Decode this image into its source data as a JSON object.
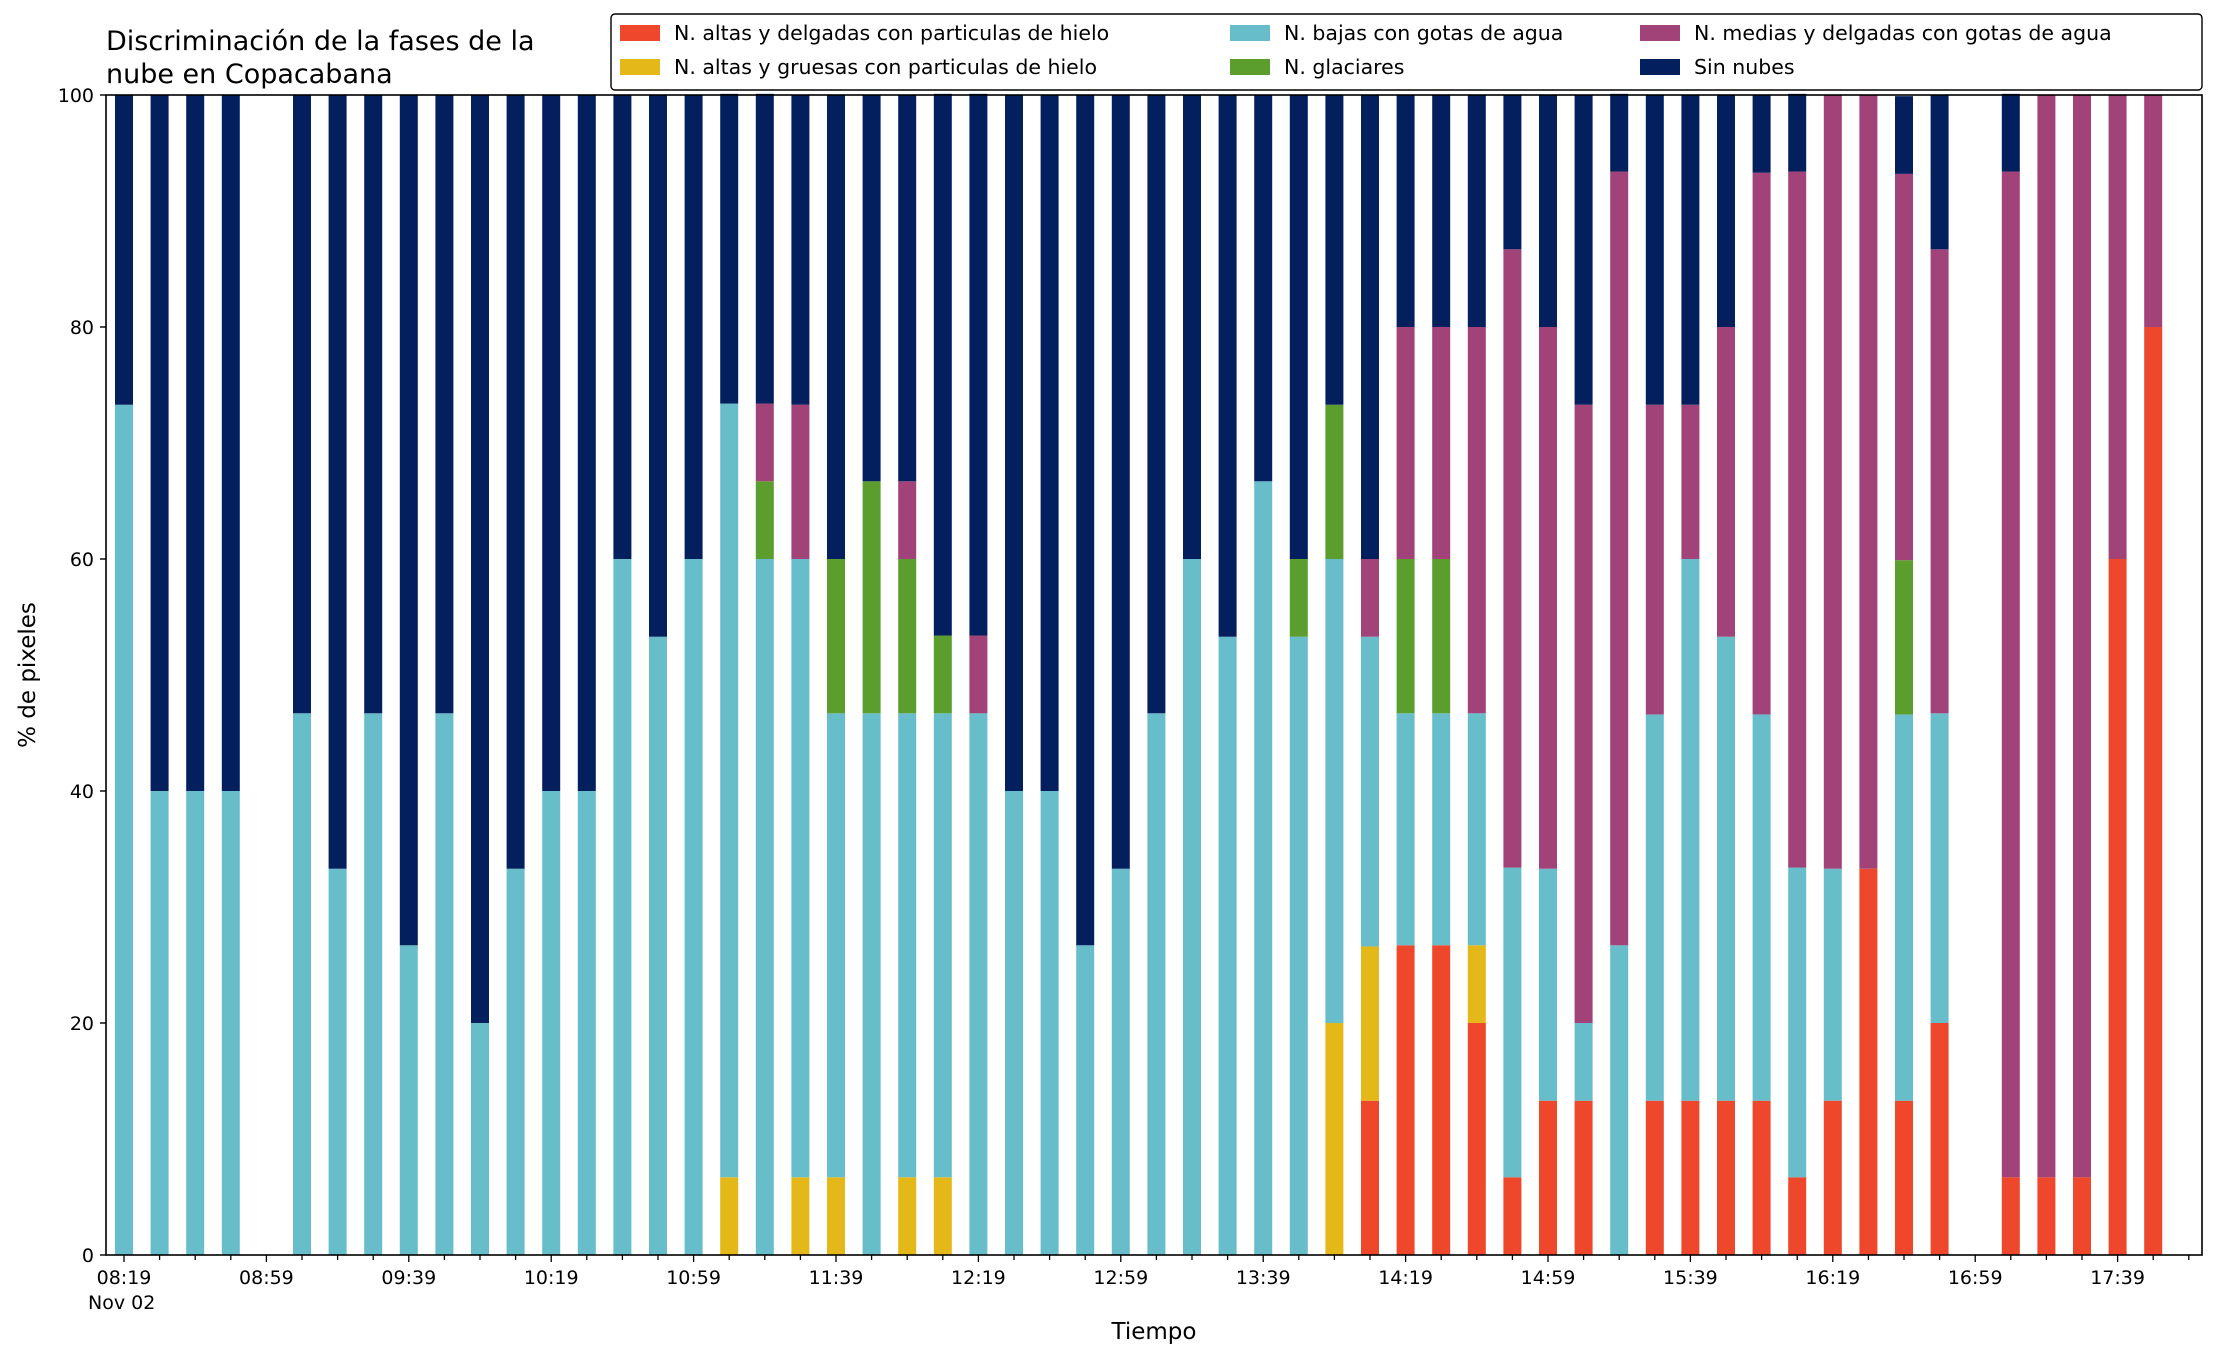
{
  "chart_data": {
    "type": "bar",
    "stacked": true,
    "title_lines": [
      "Discriminación de la fases de la",
      "nube en Copacabana"
    ],
    "xlabel": "Tiempo",
    "ylabel": "% de pixeles",
    "ylim": [
      0,
      100
    ],
    "yticks": [
      0,
      20,
      40,
      60,
      80,
      100
    ],
    "x_tick_labels": [
      "08:19",
      "08:59",
      "09:39",
      "10:19",
      "10:59",
      "11:39",
      "12:19",
      "12:59",
      "13:39",
      "14:19",
      "14:59",
      "15:39",
      "16:19",
      "16:59",
      "17:39"
    ],
    "x_date_label": "Nov 02",
    "grid": false,
    "legend_position": "top-right",
    "x": [
      "08:19",
      "08:29",
      "08:39",
      "08:49",
      "08:59",
      "09:09",
      "09:19",
      "09:29",
      "09:39",
      "09:49",
      "09:59",
      "10:09",
      "10:19",
      "10:29",
      "10:39",
      "10:49",
      "10:59",
      "11:09",
      "11:19",
      "11:29",
      "11:39",
      "11:49",
      "11:59",
      "12:09",
      "12:19",
      "12:29",
      "12:39",
      "12:49",
      "12:59",
      "13:09",
      "13:19",
      "13:29",
      "13:39",
      "13:49",
      "13:59",
      "14:09",
      "14:19",
      "14:29",
      "14:39",
      "14:49",
      "14:59",
      "15:09",
      "15:19",
      "15:29",
      "15:39",
      "15:49",
      "15:59",
      "16:09",
      "16:19",
      "16:29",
      "16:39",
      "16:49",
      "16:59",
      "17:09",
      "17:19",
      "17:29",
      "17:39",
      "17:49"
    ],
    "series": [
      {
        "name": "N. altas y delgadas con particulas de hielo",
        "color": "#ef472b",
        "values": [
          0,
          0,
          0,
          0,
          null,
          0,
          0,
          0,
          0,
          0,
          0,
          0,
          0,
          0,
          0,
          0,
          0,
          0,
          0,
          0,
          0,
          0,
          0,
          0,
          0,
          0,
          0,
          0,
          0,
          0,
          0,
          0,
          0,
          0,
          0,
          13.3,
          26.7,
          26.7,
          20,
          6.7,
          13.3,
          13.3,
          0,
          13.3,
          13.3,
          13.3,
          13.3,
          6.7,
          13.3,
          33.3,
          13.3,
          20,
          null,
          6.7,
          6.7,
          6.7,
          60,
          80
        ]
      },
      {
        "name": "N. altas y gruesas con particulas de hielo",
        "color": "#e4b819",
        "values": [
          0,
          0,
          0,
          0,
          null,
          0,
          0,
          0,
          0,
          0,
          0,
          0,
          0,
          0,
          0,
          0,
          0,
          6.7,
          0,
          6.7,
          6.7,
          0,
          6.7,
          6.7,
          0,
          0,
          0,
          0,
          0,
          0,
          0,
          0,
          0,
          0,
          20,
          13.3,
          0,
          0,
          6.7,
          0,
          0,
          0,
          0,
          0,
          0,
          0,
          0,
          0,
          0,
          0,
          0,
          0,
          null,
          0,
          0,
          0,
          0,
          0
        ]
      },
      {
        "name": "N. bajas con gotas de agua",
        "color": "#67bdca",
        "values": [
          73.3,
          40,
          40,
          40,
          null,
          46.7,
          33.3,
          46.7,
          26.7,
          46.7,
          20,
          33.3,
          40,
          40,
          60,
          53.3,
          60,
          66.7,
          60,
          53.3,
          40,
          46.7,
          40,
          40,
          46.7,
          40,
          40,
          26.7,
          33.3,
          46.7,
          60,
          53.3,
          66.7,
          53.3,
          40,
          26.7,
          20,
          20,
          20,
          26.7,
          20,
          6.7,
          26.7,
          33.3,
          46.7,
          40,
          33.3,
          26.7,
          20,
          0,
          33.3,
          26.7,
          null,
          0,
          0,
          0,
          0,
          0
        ]
      },
      {
        "name": "N. glaciares",
        "color": "#5c9e2e",
        "values": [
          0,
          0,
          0,
          0,
          null,
          0,
          0,
          0,
          0,
          0,
          0,
          0,
          0,
          0,
          0,
          0,
          0,
          0,
          6.7,
          0,
          13.3,
          20,
          13.3,
          6.7,
          0,
          0,
          0,
          0,
          0,
          0,
          0,
          0,
          0,
          6.7,
          13.3,
          0,
          13.3,
          13.3,
          0,
          0,
          0,
          0,
          0,
          0,
          0,
          0,
          0,
          0,
          0,
          0,
          13.3,
          0,
          null,
          0,
          0,
          0,
          0,
          0
        ]
      },
      {
        "name": "N. medias y delgadas con gotas de agua",
        "color": "#a14278",
        "values": [
          0,
          0,
          0,
          0,
          null,
          0,
          0,
          0,
          0,
          0,
          0,
          0,
          0,
          0,
          0,
          0,
          0,
          0,
          6.7,
          13.3,
          0,
          0,
          6.7,
          0,
          6.7,
          0,
          0,
          0,
          0,
          0,
          0,
          0,
          0,
          0,
          0,
          6.7,
          20,
          20,
          33.3,
          53.3,
          46.7,
          53.3,
          66.7,
          26.7,
          13.3,
          26.7,
          46.7,
          60,
          66.7,
          66.7,
          33.3,
          40,
          null,
          86.7,
          93.3,
          93.3,
          40,
          20
        ]
      },
      {
        "name": "Sin nubes",
        "color": "#041f5e",
        "values": [
          26.7,
          60,
          60,
          60,
          null,
          53.3,
          66.7,
          53.3,
          73.3,
          53.3,
          80,
          66.7,
          60,
          60,
          40,
          46.7,
          40,
          26.7,
          26.7,
          26.7,
          40,
          33.3,
          33.3,
          46.7,
          46.7,
          60,
          60,
          73.3,
          66.7,
          53.3,
          40,
          46.7,
          33.3,
          40,
          26.7,
          40,
          20,
          20,
          20,
          13.3,
          20,
          26.7,
          6.7,
          26.7,
          26.7,
          20,
          6.7,
          6.7,
          0,
          0,
          6.7,
          13.3,
          null,
          6.7,
          0,
          0,
          0,
          0
        ]
      }
    ]
  }
}
